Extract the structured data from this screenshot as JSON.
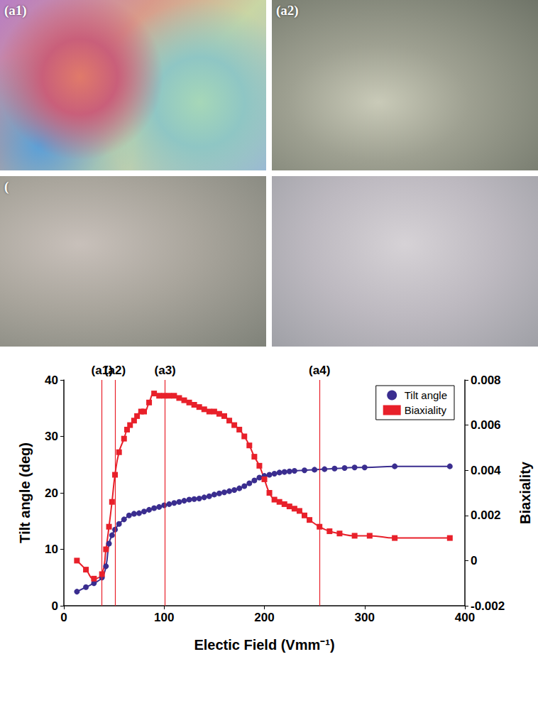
{
  "panels": [
    "(a1)",
    "(a2)",
    "(",
    null
  ],
  "chart_data": {
    "type": "line",
    "x_label": "Electic Field (Vmm⁻¹)",
    "y_label": "Tilt angle (deg)",
    "y2_label": "Biaxiality",
    "xlim": [
      0,
      400
    ],
    "xticks": [
      0,
      100,
      200,
      300,
      400
    ],
    "ylim": [
      0,
      40
    ],
    "yticks": [
      0,
      10,
      20,
      30,
      40
    ],
    "y2lim": [
      -0.002,
      0.008
    ],
    "y2ticks": [
      -0.002,
      0,
      0.002,
      0.004,
      0.006,
      0.008
    ],
    "grid": false,
    "legend": "upper right",
    "markers": [
      {
        "label": "(a1)",
        "x": 38
      },
      {
        "label": "(a2)",
        "x": 51
      },
      {
        "label": "(a3)",
        "x": 101
      },
      {
        "label": "(a4)",
        "x": 255
      }
    ],
    "series": [
      {
        "name": "Tilt angle",
        "color": "#3a2d8f",
        "marker": "circle",
        "line_style": "smooth",
        "axis": "y",
        "x": [
          13,
          22,
          30,
          38,
          42,
          45,
          48,
          51,
          55,
          60,
          65,
          70,
          75,
          80,
          85,
          90,
          95,
          100,
          105,
          110,
          115,
          120,
          125,
          130,
          135,
          140,
          145,
          150,
          155,
          160,
          165,
          170,
          175,
          180,
          185,
          190,
          195,
          200,
          205,
          210,
          215,
          220,
          225,
          230,
          240,
          250,
          260,
          270,
          280,
          290,
          300,
          330,
          385
        ],
        "values": [
          2.5,
          3.3,
          4,
          5,
          7,
          11,
          12.5,
          13.5,
          14.5,
          15.3,
          16,
          16.3,
          16.4,
          16.7,
          17,
          17.3,
          17.5,
          17.8,
          18,
          18.2,
          18.4,
          18.6,
          18.8,
          18.9,
          19,
          19.2,
          19.4,
          19.7,
          19.9,
          20.1,
          20.3,
          20.5,
          20.8,
          21.2,
          21.7,
          22.2,
          22.7,
          23,
          23.2,
          23.4,
          23.6,
          23.7,
          23.8,
          23.9,
          24,
          24.1,
          24.2,
          24.3,
          24.4,
          24.5,
          24.5,
          24.7,
          24.7
        ]
      },
      {
        "name": "Biaxiality",
        "color": "#e8202a",
        "marker": "square",
        "line_style": "smooth",
        "axis": "y2",
        "x": [
          13,
          22,
          30,
          38,
          42,
          45,
          48,
          51,
          55,
          60,
          63,
          66,
          70,
          73,
          77,
          80,
          85,
          90,
          95,
          100,
          105,
          110,
          115,
          120,
          125,
          130,
          135,
          140,
          145,
          150,
          155,
          160,
          165,
          170,
          175,
          180,
          185,
          190,
          195,
          200,
          205,
          210,
          215,
          220,
          225,
          230,
          235,
          240,
          245,
          255,
          265,
          275,
          290,
          305,
          330,
          385
        ],
        "values": [
          0,
          -0.0004,
          -0.0008,
          -0.0006,
          0.0005,
          0.0015,
          0.0026,
          0.0038,
          0.0048,
          0.0054,
          0.0058,
          0.006,
          0.0062,
          0.0064,
          0.0066,
          0.0066,
          0.007,
          0.0074,
          0.0073,
          0.0073,
          0.0073,
          0.0073,
          0.0072,
          0.0071,
          0.007,
          0.0069,
          0.0068,
          0.0067,
          0.0066,
          0.0066,
          0.0065,
          0.0064,
          0.0062,
          0.006,
          0.0058,
          0.0055,
          0.0051,
          0.0046,
          0.0042,
          0.0036,
          0.003,
          0.0027,
          0.0026,
          0.0025,
          0.0024,
          0.0023,
          0.0022,
          0.002,
          0.0018,
          0.0015,
          0.0013,
          0.0012,
          0.0011,
          0.0011,
          0.001,
          0.001
        ]
      }
    ]
  }
}
